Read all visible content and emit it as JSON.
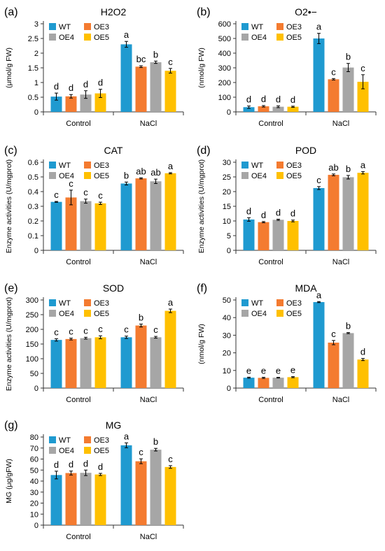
{
  "figure": {
    "series_names": [
      "WT",
      "OE3",
      "OE4",
      "OE5"
    ],
    "colors": {
      "WT": "#1f9ad0",
      "OE3": "#f47b30",
      "OE4": "#a6a6a6",
      "OE5": "#ffc000"
    },
    "categories": [
      "Control",
      "NaCl"
    ]
  },
  "chart_data": [
    {
      "panel_label": "(a)",
      "type": "bar",
      "title": "H2O2",
      "ylabel": "(μmol/g FW)",
      "ylim": [
        0,
        3
      ],
      "yticks": [
        "0",
        "0.5",
        "1",
        "1.5",
        "2",
        "2.5",
        "3"
      ],
      "categories": [
        "Control",
        "NaCl"
      ],
      "series": [
        {
          "name": "WT",
          "values": [
            0.52,
            2.3
          ],
          "errors": [
            0.12,
            0.1
          ],
          "letters": [
            "d",
            "a"
          ]
        },
        {
          "name": "OE3",
          "values": [
            0.53,
            1.54
          ],
          "errors": [
            0.06,
            0.03
          ],
          "letters": [
            "d",
            "bc"
          ]
        },
        {
          "name": "OE4",
          "values": [
            0.59,
            1.69
          ],
          "errors": [
            0.13,
            0.04
          ],
          "letters": [
            "d",
            "b"
          ]
        },
        {
          "name": "OE5",
          "values": [
            0.63,
            1.4
          ],
          "errors": [
            0.14,
            0.08
          ],
          "letters": [
            "d",
            "c"
          ]
        }
      ]
    },
    {
      "panel_label": "(b)",
      "type": "bar",
      "title": "O2•−",
      "ylabel": "(nmol/g FW)",
      "ylim": [
        0,
        600
      ],
      "yticks": [
        "0",
        "100",
        "200",
        "300",
        "400",
        "500",
        "600"
      ],
      "categories": [
        "Control",
        "NaCl"
      ],
      "series": [
        {
          "name": "WT",
          "values": [
            32,
            500
          ],
          "errors": [
            8,
            35
          ],
          "letters": [
            "d",
            "a"
          ]
        },
        {
          "name": "OE3",
          "values": [
            38,
            222
          ],
          "errors": [
            5,
            5
          ],
          "letters": [
            "d",
            "c"
          ]
        },
        {
          "name": "OE4",
          "values": [
            35,
            302
          ],
          "errors": [
            6,
            28
          ],
          "letters": [
            "d",
            "b"
          ]
        },
        {
          "name": "OE5",
          "values": [
            35,
            205
          ],
          "errors": [
            4,
            48
          ],
          "letters": [
            "d",
            "c"
          ]
        }
      ]
    },
    {
      "panel_label": "(c)",
      "type": "bar",
      "title": "CAT",
      "ylabel": "Enzyme activities (U/mgprot)",
      "ylim": [
        0,
        0.6
      ],
      "yticks": [
        "0",
        "0.1",
        "0.2",
        "0.3",
        "0.4",
        "0.5",
        "0.6"
      ],
      "categories": [
        "Control",
        "NaCl"
      ],
      "series": [
        {
          "name": "WT",
          "values": [
            0.33,
            0.455
          ],
          "errors": [
            0.003,
            0.01
          ],
          "letters": [
            "c",
            "b"
          ]
        },
        {
          "name": "OE3",
          "values": [
            0.36,
            0.49
          ],
          "errors": [
            0.05,
            0.004
          ],
          "letters": [
            "c",
            "ab"
          ]
        },
        {
          "name": "OE4",
          "values": [
            0.335,
            0.47
          ],
          "errors": [
            0.014,
            0.015
          ],
          "letters": [
            "c",
            "ab"
          ]
        },
        {
          "name": "OE5",
          "values": [
            0.32,
            0.525
          ],
          "errors": [
            0.008,
            0.004
          ],
          "letters": [
            "c",
            "a"
          ]
        }
      ]
    },
    {
      "panel_label": "(d)",
      "type": "bar",
      "title": "POD",
      "ylabel": "Enzyme activities (U/mgprot)",
      "ylim": [
        0,
        30
      ],
      "yticks": [
        "0",
        "5",
        "10",
        "15",
        "20",
        "25",
        "30"
      ],
      "categories": [
        "Control",
        "NaCl"
      ],
      "series": [
        {
          "name": "WT",
          "values": [
            10.5,
            21.2
          ],
          "errors": [
            0.6,
            0.5
          ],
          "letters": [
            "d",
            "c"
          ]
        },
        {
          "name": "OE3",
          "values": [
            9.6,
            25.7
          ],
          "errors": [
            0.2,
            0.3
          ],
          "letters": [
            "d",
            "ab"
          ]
        },
        {
          "name": "OE4",
          "values": [
            10.4,
            24.9
          ],
          "errors": [
            0.2,
            0.6
          ],
          "letters": [
            "d",
            "b"
          ]
        },
        {
          "name": "OE5",
          "values": [
            10.0,
            26.4
          ],
          "errors": [
            0.3,
            0.4
          ],
          "letters": [
            "d",
            "a"
          ]
        }
      ]
    },
    {
      "panel_label": "(e)",
      "type": "bar",
      "title": "SOD",
      "ylabel": "Enzyme activities (U/mgprot)",
      "ylim": [
        0,
        300
      ],
      "yticks": [
        "0",
        "50",
        "100",
        "150",
        "200",
        "250",
        "300"
      ],
      "categories": [
        "Control",
        "NaCl"
      ],
      "series": [
        {
          "name": "WT",
          "values": [
            164,
            173
          ],
          "errors": [
            4,
            4
          ],
          "letters": [
            "c",
            "c"
          ]
        },
        {
          "name": "OE3",
          "values": [
            167,
            213
          ],
          "errors": [
            3,
            5
          ],
          "letters": [
            "c",
            "b"
          ]
        },
        {
          "name": "OE4",
          "values": [
            170,
            173
          ],
          "errors": [
            3,
            3
          ],
          "letters": [
            "c",
            "c"
          ]
        },
        {
          "name": "OE5",
          "values": [
            173,
            263
          ],
          "errors": [
            5,
            6
          ],
          "letters": [
            "c",
            "a"
          ]
        }
      ]
    },
    {
      "panel_label": "(f)",
      "type": "bar",
      "title": "MDA",
      "ylabel": "(nmol/g FW)",
      "ylim": [
        0,
        50
      ],
      "yticks": [
        "0",
        "10",
        "20",
        "30",
        "40",
        "50"
      ],
      "categories": [
        "Control",
        "NaCl"
      ],
      "series": [
        {
          "name": "WT",
          "values": [
            5.9,
            48.8
          ],
          "errors": [
            0.3,
            0.3
          ],
          "letters": [
            "e",
            "a"
          ]
        },
        {
          "name": "OE3",
          "values": [
            5.8,
            25.8
          ],
          "errors": [
            0.3,
            1.2
          ],
          "letters": [
            "e",
            "c"
          ]
        },
        {
          "name": "OE4",
          "values": [
            5.9,
            31.2
          ],
          "errors": [
            0.2,
            0.3
          ],
          "letters": [
            "e",
            "b"
          ]
        },
        {
          "name": "OE5",
          "values": [
            6.2,
            16.2
          ],
          "errors": [
            0.3,
            0.6
          ],
          "letters": [
            "e",
            "d"
          ]
        }
      ]
    },
    {
      "panel_label": "(g)",
      "type": "bar",
      "title": "MG",
      "ylabel": "MG (μg/gFW)",
      "ylim": [
        0,
        80
      ],
      "yticks": [
        "0",
        "10",
        "20",
        "30",
        "40",
        "50",
        "60",
        "70",
        "80"
      ],
      "categories": [
        "Control",
        "NaCl"
      ],
      "series": [
        {
          "name": "WT",
          "values": [
            45.5,
            72.5
          ],
          "errors": [
            3.5,
            2.2
          ],
          "letters": [
            "d",
            "a"
          ]
        },
        {
          "name": "OE3",
          "values": [
            47.3,
            58.0
          ],
          "errors": [
            1.8,
            2.2
          ],
          "letters": [
            "d",
            "c"
          ]
        },
        {
          "name": "OE4",
          "values": [
            47.5,
            68.5
          ],
          "errors": [
            2.5,
            1.2
          ],
          "letters": [
            "d",
            "b"
          ]
        },
        {
          "name": "OE5",
          "values": [
            46.0,
            52.8
          ],
          "errors": [
            1.0,
            1.2
          ],
          "letters": [
            "d",
            "c"
          ]
        }
      ]
    }
  ]
}
